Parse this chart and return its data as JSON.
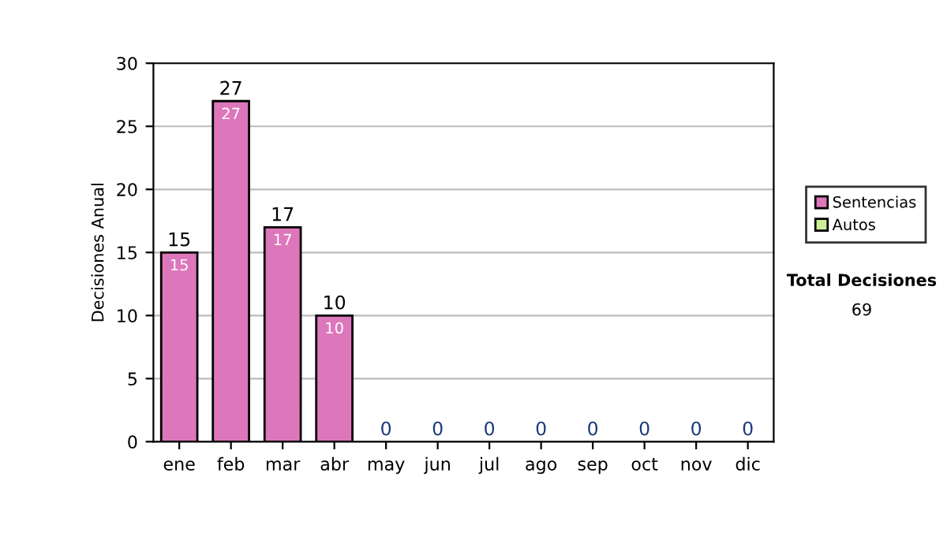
{
  "chart_data": {
    "type": "bar",
    "stacked": true,
    "ylabel": "Decisiones Anual",
    "categories": [
      "ene",
      "feb",
      "mar",
      "abr",
      "may",
      "jun",
      "jul",
      "ago",
      "sep",
      "oct",
      "nov",
      "dic"
    ],
    "series": [
      {
        "name": "Sentencias",
        "color": "#dd77bb",
        "values": [
          15,
          27,
          17,
          10,
          0,
          0,
          0,
          0,
          0,
          0,
          0,
          0
        ],
        "value_labels": [
          "15",
          "27",
          "17",
          "10",
          null,
          null,
          null,
          null,
          null,
          null,
          null,
          null
        ]
      },
      {
        "name": "Autos",
        "color": "#ccee99",
        "values": [
          0,
          0,
          0,
          0,
          0,
          0,
          0,
          0,
          0,
          0,
          0,
          0
        ]
      }
    ],
    "totals": [
      "15",
      "27",
      "17",
      "10",
      "0",
      "0",
      "0",
      "0",
      "0",
      "0",
      "0",
      "0"
    ],
    "ylim": [
      0,
      30
    ],
    "yticks": [
      0,
      5,
      10,
      15,
      20,
      25,
      30
    ],
    "grid": "y",
    "legend": "right",
    "annotations": [
      "Total Decisiones",
      "69"
    ]
  }
}
